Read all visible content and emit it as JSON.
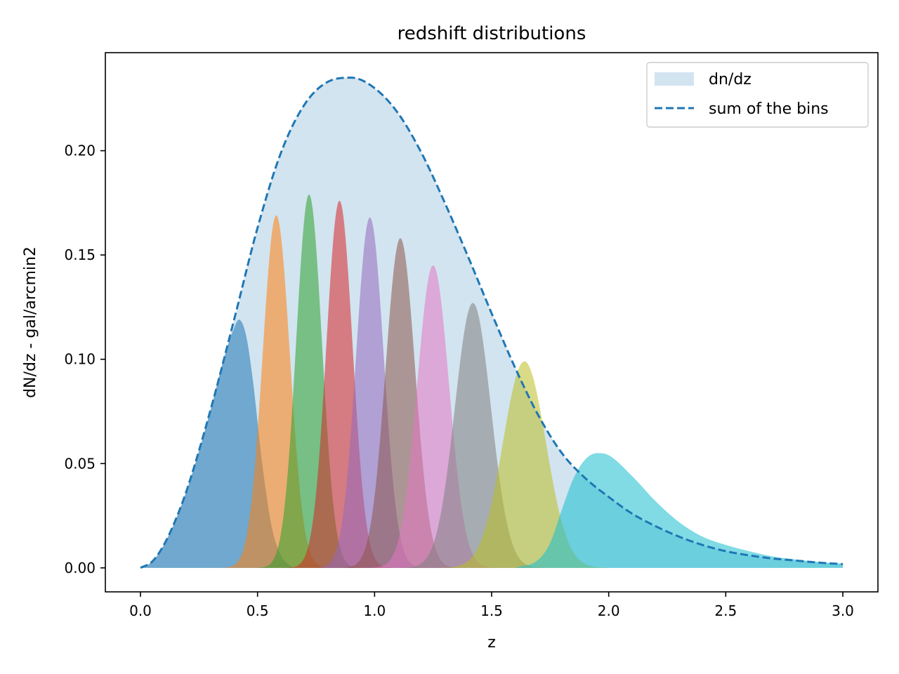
{
  "chart_data": {
    "type": "area",
    "title": "redshift distributions",
    "xlabel": "z",
    "ylabel": "dN/dz - gal/arcmin2",
    "xlim": [
      -0.15,
      3.15
    ],
    "ylim": [
      -0.0115,
      0.247
    ],
    "x_ticks": [
      "0.0",
      "0.5",
      "1.0",
      "1.5",
      "2.0",
      "2.5",
      "3.0"
    ],
    "x_tick_values": [
      0.0,
      0.5,
      1.0,
      1.5,
      2.0,
      2.5,
      3.0
    ],
    "y_ticks": [
      "0.00",
      "0.05",
      "0.10",
      "0.15",
      "0.20"
    ],
    "y_tick_values": [
      0.0,
      0.05,
      0.1,
      0.15,
      0.2
    ],
    "grid": false,
    "legend": {
      "placement": "top-right",
      "entries": [
        {
          "label": "dn/dz",
          "style": "filled",
          "color": "#1f77b4",
          "alpha": 0.2
        },
        {
          "label": "sum of the bins",
          "style": "dashed",
          "color": "#1f77b4"
        }
      ]
    },
    "total_dndz": {
      "x": [
        0.0,
        0.05,
        0.1,
        0.15,
        0.2,
        0.3,
        0.4,
        0.5,
        0.6,
        0.7,
        0.8,
        0.9,
        1.0,
        1.1,
        1.2,
        1.3,
        1.4,
        1.5,
        1.6,
        1.7,
        1.8,
        1.9,
        2.0,
        2.1,
        2.2,
        2.3,
        2.4,
        2.5,
        2.6,
        2.7,
        2.8,
        2.9,
        3.0
      ],
      "y": [
        0.0,
        0.003,
        0.011,
        0.023,
        0.038,
        0.076,
        0.119,
        0.163,
        0.199,
        0.222,
        0.233,
        0.235,
        0.23,
        0.218,
        0.199,
        0.175,
        0.149,
        0.122,
        0.096,
        0.073,
        0.055,
        0.043,
        0.034,
        0.026,
        0.02,
        0.015,
        0.011,
        0.008,
        0.006,
        0.0045,
        0.0035,
        0.0025,
        0.0018
      ]
    },
    "bins": [
      {
        "color": "#1f77b4",
        "x": [
          0.0,
          0.05,
          0.1,
          0.15,
          0.2,
          0.25,
          0.3,
          0.35,
          0.4,
          0.42,
          0.45,
          0.48,
          0.52,
          0.56,
          0.6,
          0.65
        ],
        "y": [
          0.0,
          0.003,
          0.011,
          0.023,
          0.038,
          0.056,
          0.076,
          0.098,
          0.115,
          0.119,
          0.112,
          0.09,
          0.05,
          0.02,
          0.006,
          0.0
        ]
      },
      {
        "center": 0.58,
        "peak": 0.169,
        "sigma": 0.058,
        "color": "#ff7f0e"
      },
      {
        "center": 0.72,
        "peak": 0.179,
        "sigma": 0.055,
        "color": "#2ca02c"
      },
      {
        "center": 0.85,
        "peak": 0.176,
        "sigma": 0.056,
        "color": "#d62728"
      },
      {
        "center": 0.98,
        "peak": 0.168,
        "sigma": 0.059,
        "color": "#9467bd"
      },
      {
        "center": 1.11,
        "peak": 0.158,
        "sigma": 0.063,
        "color": "#8c564b"
      },
      {
        "center": 1.25,
        "peak": 0.145,
        "sigma": 0.068,
        "color": "#e377c2"
      },
      {
        "center": 1.42,
        "peak": 0.127,
        "sigma": 0.077,
        "color": "#7f7f7f"
      },
      {
        "center": 1.64,
        "peak": 0.099,
        "sigma": 0.092,
        "color": "#bcbd22"
      },
      {
        "color": "#17becf",
        "x": [
          1.6,
          1.7,
          1.75,
          1.8,
          1.85,
          1.9,
          1.95,
          2.0,
          2.1,
          2.2,
          2.3,
          2.4,
          2.5,
          2.6,
          2.7,
          2.8,
          2.9,
          3.0
        ],
        "y": [
          0.0,
          0.004,
          0.012,
          0.028,
          0.043,
          0.052,
          0.055,
          0.054,
          0.044,
          0.032,
          0.022,
          0.015,
          0.011,
          0.008,
          0.0055,
          0.004,
          0.0028,
          0.002
        ]
      }
    ]
  }
}
